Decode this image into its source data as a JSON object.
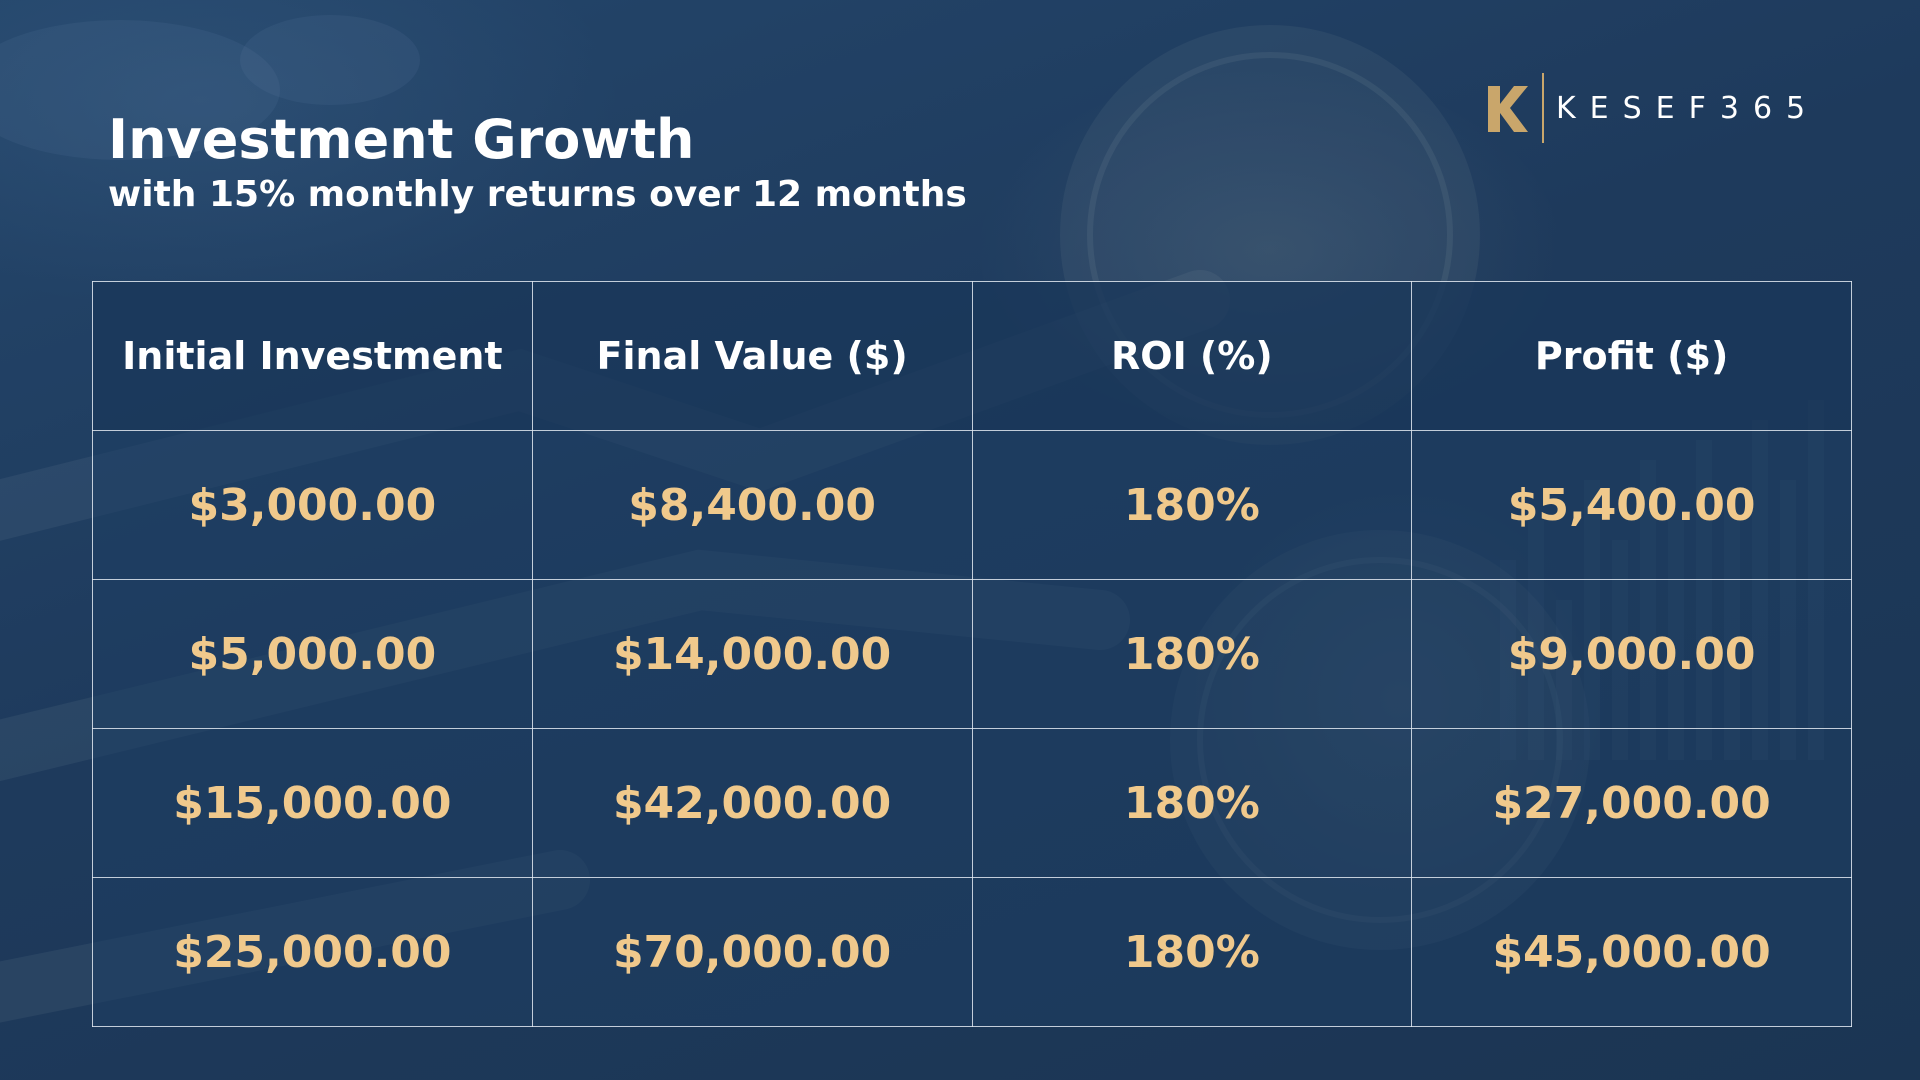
{
  "title": "Investment Growth",
  "subtitle": "with 15% monthly returns over 12 months",
  "logo": {
    "text": "KESEF365",
    "mark": "K",
    "color": "#c9a66b"
  },
  "colors": {
    "background": "#1f3b5c",
    "value_text": "#f0c98c",
    "header_text": "#ffffff",
    "grid": "#e1e8f0"
  },
  "chart_data": {
    "type": "table",
    "columns": [
      "Initial Investment",
      "Final Value ($)",
      "ROI (%)",
      "Profit ($)"
    ],
    "rows": [
      [
        "$3,000.00",
        "$8,400.00",
        "180%",
        "$5,400.00"
      ],
      [
        "$5,000.00",
        "$14,000.00",
        "180%",
        "$9,000.00"
      ],
      [
        "$15,000.00",
        "$42,000.00",
        "180%",
        "$27,000.00"
      ],
      [
        "$25,000.00",
        "$70,000.00",
        "180%",
        "$45,000.00"
      ]
    ]
  }
}
